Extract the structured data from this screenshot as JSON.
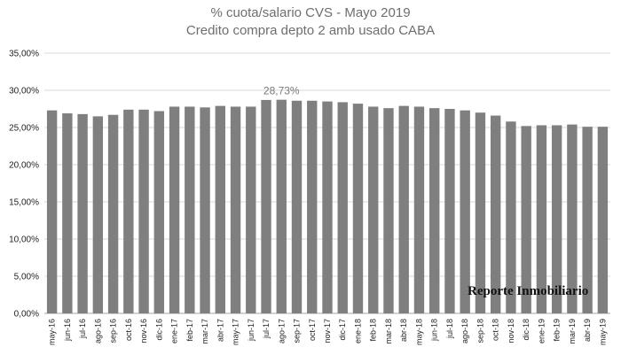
{
  "chart_data": {
    "type": "bar",
    "title": "% cuota/salario CVS - Mayo 2019",
    "subtitle": "Credito compra depto 2 amb usado CABA",
    "xlabel": "",
    "ylabel": "",
    "ylim": [
      0,
      35
    ],
    "y_ticks": [
      "0,00%",
      "5,00%",
      "10,00%",
      "15,00%",
      "20,00%",
      "25,00%",
      "30,00%",
      "35,00%"
    ],
    "grid": true,
    "bar_color": "#7f7f7f",
    "categories": [
      "may-16",
      "jun-16",
      "jul-16",
      "ago-16",
      "sep-16",
      "oct-16",
      "nov-16",
      "dic-16",
      "ene-17",
      "feb-17",
      "mar-17",
      "abr-17",
      "may-17",
      "jun-17",
      "jul-17",
      "ago-17",
      "sep-17",
      "oct-17",
      "nov-17",
      "dic-17",
      "ene-18",
      "feb-18",
      "mar-18",
      "abr-18",
      "may-18",
      "jun-18",
      "jul-18",
      "ago-18",
      "sep-18",
      "oct-18",
      "nov-18",
      "dic-18",
      "ene-19",
      "feb-19",
      "mar-19",
      "abr-19",
      "may-19"
    ],
    "values": [
      27.3,
      26.9,
      26.8,
      26.5,
      26.7,
      27.4,
      27.4,
      27.2,
      27.8,
      27.8,
      27.7,
      27.9,
      27.8,
      27.8,
      28.7,
      28.73,
      28.6,
      28.6,
      28.5,
      28.4,
      28.2,
      27.8,
      27.6,
      27.9,
      27.8,
      27.6,
      27.5,
      27.3,
      27.0,
      26.6,
      25.8,
      25.2,
      25.3,
      25.3,
      25.4,
      25.1,
      25.1
    ],
    "annotations": [
      {
        "category": "ago-17",
        "text": "28,73%"
      }
    ],
    "watermark": "Reporte Inmobiliario"
  }
}
